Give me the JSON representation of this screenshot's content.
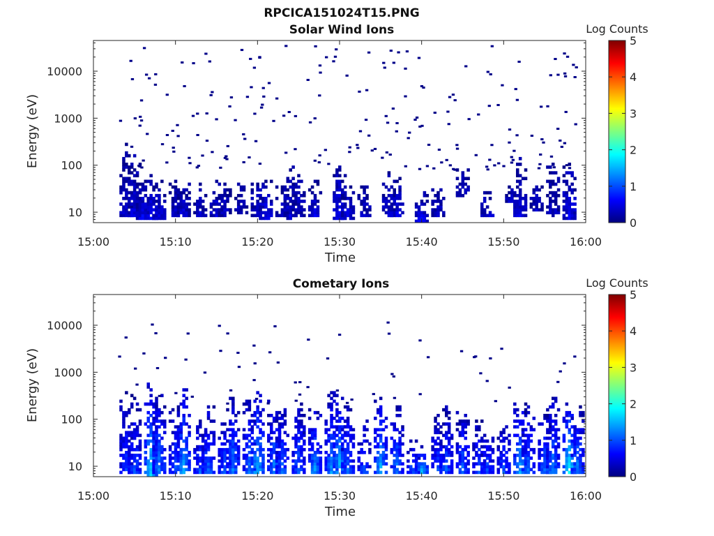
{
  "figure_title": "RPCICA151024T15.PNG",
  "colormap": [
    "#00007f",
    "#0000ff",
    "#007fff",
    "#00ffff",
    "#7fff7f",
    "#ffff00",
    "#ff7f00",
    "#ff0000",
    "#7f0000"
  ],
  "panels": [
    {
      "title": "Solar Wind Ions",
      "xlabel": "Time",
      "ylabel": "Energy (eV)",
      "x_ticks": [
        "15:00",
        "15:10",
        "15:20",
        "15:30",
        "15:40",
        "15:50",
        "16:00"
      ],
      "y_ticks": [
        "10",
        "100",
        "1000",
        "10000"
      ],
      "colorbar": {
        "label": "Log Counts",
        "ticks": [
          "0",
          "1",
          "2",
          "3",
          "4",
          "5"
        ]
      }
    },
    {
      "title": "Cometary Ions",
      "xlabel": "Time",
      "ylabel": "Energy (eV)",
      "x_ticks": [
        "15:00",
        "15:10",
        "15:20",
        "15:30",
        "15:40",
        "15:50",
        "16:00"
      ],
      "y_ticks": [
        "10",
        "100",
        "1000",
        "10000"
      ],
      "colorbar": {
        "label": "Log Counts",
        "ticks": [
          "0",
          "1",
          "2",
          "3",
          "4",
          "5"
        ]
      }
    }
  ],
  "chart_data": [
    {
      "type": "heatmap",
      "title": "Solar Wind Ions",
      "xlabel": "Time",
      "ylabel": "Energy (eV)",
      "x_range": [
        "15:00",
        "16:00"
      ],
      "y_range_eV": [
        6,
        45000
      ],
      "y_scale": "log",
      "color_label": "Log Counts",
      "color_range": [
        0,
        5
      ],
      "bursts": [
        {
          "t": "15:04",
          "e_lo": 8,
          "e_hi": 300,
          "level": 0.3
        },
        {
          "t": "15:05",
          "e_lo": 8,
          "e_hi": 200,
          "level": 0.4
        },
        {
          "t": "15:06",
          "e_lo": 7,
          "e_hi": 50,
          "level": 0.5
        },
        {
          "t": "15:07",
          "e_lo": 7,
          "e_hi": 60,
          "level": 0.5
        },
        {
          "t": "15:08",
          "e_lo": 7,
          "e_hi": 50,
          "level": 0.4
        },
        {
          "t": "15:10",
          "e_lo": 8,
          "e_hi": 50,
          "level": 0.3
        },
        {
          "t": "15:11",
          "e_lo": 8,
          "e_hi": 50,
          "level": 0.4
        },
        {
          "t": "15:13",
          "e_lo": 8,
          "e_hi": 40,
          "level": 0.3
        },
        {
          "t": "15:15",
          "e_lo": 8,
          "e_hi": 50,
          "level": 0.4
        },
        {
          "t": "15:16",
          "e_lo": 8,
          "e_hi": 45,
          "level": 0.3
        },
        {
          "t": "15:18",
          "e_lo": 9,
          "e_hi": 40,
          "level": 0.3
        },
        {
          "t": "15:20",
          "e_lo": 8,
          "e_hi": 45,
          "level": 0.4
        },
        {
          "t": "15:21",
          "e_lo": 7,
          "e_hi": 50,
          "level": 0.5
        },
        {
          "t": "15:23",
          "e_lo": 8,
          "e_hi": 40,
          "level": 0.3
        },
        {
          "t": "15:24",
          "e_lo": 7,
          "e_hi": 100,
          "level": 0.4
        },
        {
          "t": "15:25",
          "e_lo": 8,
          "e_hi": 60,
          "level": 0.3
        },
        {
          "t": "15:27",
          "e_lo": 8,
          "e_hi": 50,
          "level": 0.4
        },
        {
          "t": "15:30",
          "e_lo": 7,
          "e_hi": 120,
          "level": 0.5
        },
        {
          "t": "15:31",
          "e_lo": 7,
          "e_hi": 50,
          "level": 0.4
        },
        {
          "t": "15:33",
          "e_lo": 8,
          "e_hi": 40,
          "level": 0.3
        },
        {
          "t": "15:36",
          "e_lo": 8,
          "e_hi": 70,
          "level": 0.4
        },
        {
          "t": "15:37",
          "e_lo": 8,
          "e_hi": 60,
          "level": 0.4
        },
        {
          "t": "15:40",
          "e_lo": 6,
          "e_hi": 30,
          "level": 0.5
        },
        {
          "t": "15:42",
          "e_lo": 8,
          "e_hi": 40,
          "level": 0.3
        },
        {
          "t": "15:45",
          "e_lo": 20,
          "e_hi": 100,
          "level": 0.3
        },
        {
          "t": "15:48",
          "e_lo": 8,
          "e_hi": 30,
          "level": 0.4
        },
        {
          "t": "15:51",
          "e_lo": 15,
          "e_hi": 40,
          "level": 0.3
        },
        {
          "t": "15:52",
          "e_lo": 8,
          "e_hi": 150,
          "level": 0.4
        },
        {
          "t": "15:54",
          "e_lo": 10,
          "e_hi": 50,
          "level": 0.3
        },
        {
          "t": "15:56",
          "e_lo": 8,
          "e_hi": 120,
          "level": 0.3
        },
        {
          "t": "15:58",
          "e_lo": 7,
          "e_hi": 150,
          "level": 0.5
        }
      ],
      "scatter_region": {
        "t_from": "15:03",
        "t_to": "15:59",
        "e_lo": 80,
        "e_hi": 35000,
        "density": 0.5
      }
    },
    {
      "type": "heatmap",
      "title": "Cometary Ions",
      "xlabel": "Time",
      "ylabel": "Energy (eV)",
      "x_range": [
        "15:00",
        "16:00"
      ],
      "y_range_eV": [
        6,
        45000
      ],
      "y_scale": "log",
      "color_label": "Log Counts",
      "color_range": [
        0,
        5
      ],
      "bursts": [
        {
          "t": "15:04",
          "e_lo": 7,
          "e_hi": 400,
          "level": 0.8
        },
        {
          "t": "15:05",
          "e_lo": 7,
          "e_hi": 300,
          "level": 0.9
        },
        {
          "t": "15:07",
          "e_lo": 6,
          "e_hi": 600,
          "level": 1.5
        },
        {
          "t": "15:08",
          "e_lo": 7,
          "e_hi": 400,
          "level": 1.1
        },
        {
          "t": "15:10",
          "e_lo": 7,
          "e_hi": 200,
          "level": 0.9
        },
        {
          "t": "15:11",
          "e_lo": 7,
          "e_hi": 500,
          "level": 1.3
        },
        {
          "t": "15:13",
          "e_lo": 7,
          "e_hi": 100,
          "level": 0.9
        },
        {
          "t": "15:14",
          "e_lo": 7,
          "e_hi": 200,
          "level": 1.0
        },
        {
          "t": "15:16",
          "e_lo": 7,
          "e_hi": 100,
          "level": 0.9
        },
        {
          "t": "15:17",
          "e_lo": 7,
          "e_hi": 300,
          "level": 1.1
        },
        {
          "t": "15:19",
          "e_lo": 7,
          "e_hi": 300,
          "level": 1.0
        },
        {
          "t": "15:20",
          "e_lo": 7,
          "e_hi": 400,
          "level": 1.4
        },
        {
          "t": "15:22",
          "e_lo": 7,
          "e_hi": 250,
          "level": 1.1
        },
        {
          "t": "15:23",
          "e_lo": 7,
          "e_hi": 200,
          "level": 1.0
        },
        {
          "t": "15:25",
          "e_lo": 7,
          "e_hi": 250,
          "level": 1.0
        },
        {
          "t": "15:27",
          "e_lo": 7,
          "e_hi": 200,
          "level": 1.2
        },
        {
          "t": "15:29",
          "e_lo": 7,
          "e_hi": 400,
          "level": 1.2
        },
        {
          "t": "15:30",
          "e_lo": 7,
          "e_hi": 300,
          "level": 1.4
        },
        {
          "t": "15:31",
          "e_lo": 7,
          "e_hi": 200,
          "level": 1.0
        },
        {
          "t": "15:33",
          "e_lo": 7,
          "e_hi": 100,
          "level": 0.9
        },
        {
          "t": "15:35",
          "e_lo": 7,
          "e_hi": 300,
          "level": 1.3
        },
        {
          "t": "15:37",
          "e_lo": 7,
          "e_hi": 200,
          "level": 1.1
        },
        {
          "t": "15:39",
          "e_lo": 7,
          "e_hi": 40,
          "level": 1.0
        },
        {
          "t": "15:40",
          "e_lo": 7,
          "e_hi": 30,
          "level": 1.3
        },
        {
          "t": "15:42",
          "e_lo": 8,
          "e_hi": 150,
          "level": 0.8
        },
        {
          "t": "15:43",
          "e_lo": 7,
          "e_hi": 200,
          "level": 0.9
        },
        {
          "t": "15:45",
          "e_lo": 7,
          "e_hi": 150,
          "level": 1.0
        },
        {
          "t": "15:47",
          "e_lo": 7,
          "e_hi": 100,
          "level": 0.9
        },
        {
          "t": "15:48",
          "e_lo": 7,
          "e_hi": 60,
          "level": 0.9
        },
        {
          "t": "15:50",
          "e_lo": 7,
          "e_hi": 100,
          "level": 0.9
        },
        {
          "t": "15:52",
          "e_lo": 7,
          "e_hi": 350,
          "level": 1.3
        },
        {
          "t": "15:53",
          "e_lo": 7,
          "e_hi": 200,
          "level": 1.0
        },
        {
          "t": "15:55",
          "e_lo": 7,
          "e_hi": 150,
          "level": 1.0
        },
        {
          "t": "15:56",
          "e_lo": 7,
          "e_hi": 300,
          "level": 1.1
        },
        {
          "t": "15:58",
          "e_lo": 7,
          "e_hi": 300,
          "level": 1.6
        },
        {
          "t": "15:59",
          "e_lo": 7,
          "e_hi": 200,
          "level": 1.1
        }
      ],
      "scatter_region": {
        "t_from": "15:03",
        "t_to": "15:59",
        "e_lo": 200,
        "e_hi": 12000,
        "density": 0.15
      }
    }
  ]
}
